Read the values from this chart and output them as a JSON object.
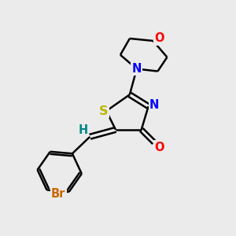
{
  "bg_color": "#ebebeb",
  "atom_colors": {
    "C": "#000000",
    "N": "#0000ff",
    "O": "#ff0000",
    "S": "#b8b800",
    "Br": "#cc6600",
    "H": "#008888"
  },
  "figsize": [
    3.0,
    3.0
  ],
  "dpi": 100,
  "bond_lw": 1.8,
  "font_size": 10.5
}
